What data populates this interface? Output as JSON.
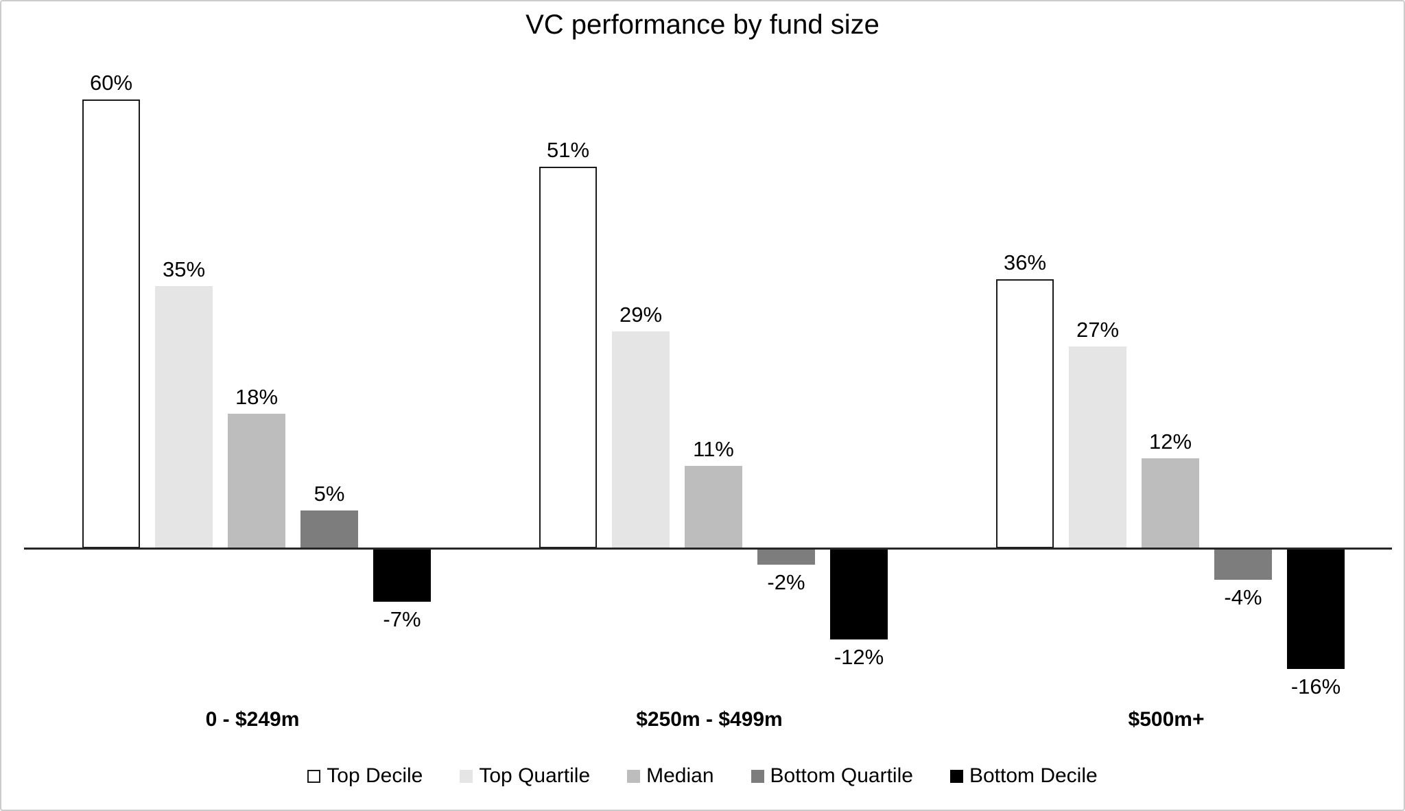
{
  "title": "VC performance by fund size",
  "chart_data": {
    "type": "bar",
    "title": "VC performance by fund size",
    "xlabel": "",
    "ylabel": "",
    "ylim": [
      -20,
      65
    ],
    "grid": false,
    "legend_position": "bottom",
    "value_suffix": "%",
    "axis_color": "#262626",
    "categories": [
      "0 - $249m",
      "$250m - $499m",
      "$500m+"
    ],
    "series": [
      {
        "name": "Top Decile",
        "values": [
          60,
          51,
          36
        ],
        "labels": [
          "60%",
          "51%",
          "36%"
        ],
        "fill": "#ffffff",
        "border": "#1a1a1a"
      },
      {
        "name": "Top Quartile",
        "values": [
          35,
          29,
          27
        ],
        "labels": [
          "35%",
          "29%",
          "27%"
        ],
        "fill": "#e5e5e5"
      },
      {
        "name": "Median",
        "values": [
          18,
          11,
          12
        ],
        "labels": [
          "18%",
          "11%",
          "12%"
        ],
        "fill": "#bdbdbd"
      },
      {
        "name": "Bottom Quartile",
        "values": [
          5,
          -2,
          -4
        ],
        "labels": [
          "5%",
          "-2%",
          "-4%"
        ],
        "fill": "#7d7d7d"
      },
      {
        "name": "Bottom Decile",
        "values": [
          -7,
          -12,
          -16
        ],
        "labels": [
          "-7%",
          "-12%",
          "-16%"
        ],
        "fill": "#000000"
      }
    ]
  }
}
